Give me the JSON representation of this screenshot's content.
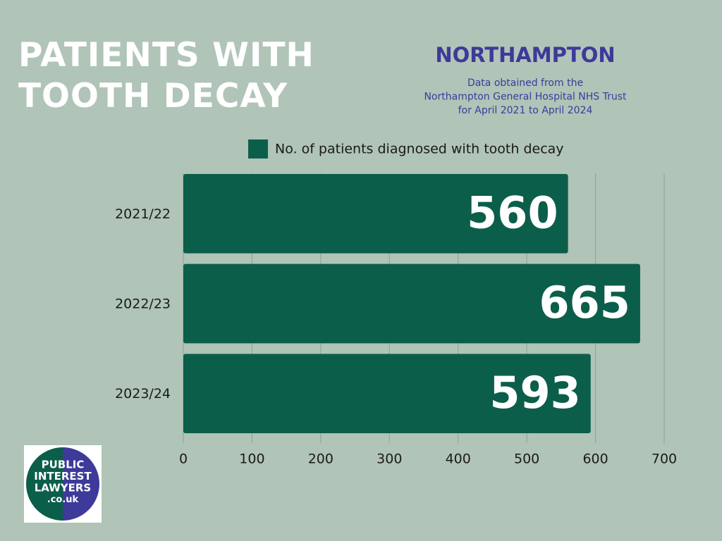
{
  "chart_data": {
    "type": "barh",
    "title": "PATIENTS WITH TOOTH DECAY",
    "subtitle": "NORTHAMPTON",
    "note_lines": [
      "Data obtained from the",
      "Northampton General Hospital NHS Trust",
      "for April 2021 to April 2024"
    ],
    "categories": [
      "2021/22",
      "2022/23",
      "2023/24"
    ],
    "series": [
      {
        "name": "No. of patients diagnosed with tooth decay",
        "color": "#0b5e4a",
        "values": [
          560,
          665,
          593
        ]
      }
    ],
    "xlim": [
      0,
      700
    ],
    "xticks": [
      0,
      100,
      200,
      300,
      400,
      500,
      600,
      700
    ],
    "grid": true,
    "logo_lines": [
      "PUBLIC",
      "INTEREST",
      "LAWYERS",
      ".co.uk"
    ]
  }
}
